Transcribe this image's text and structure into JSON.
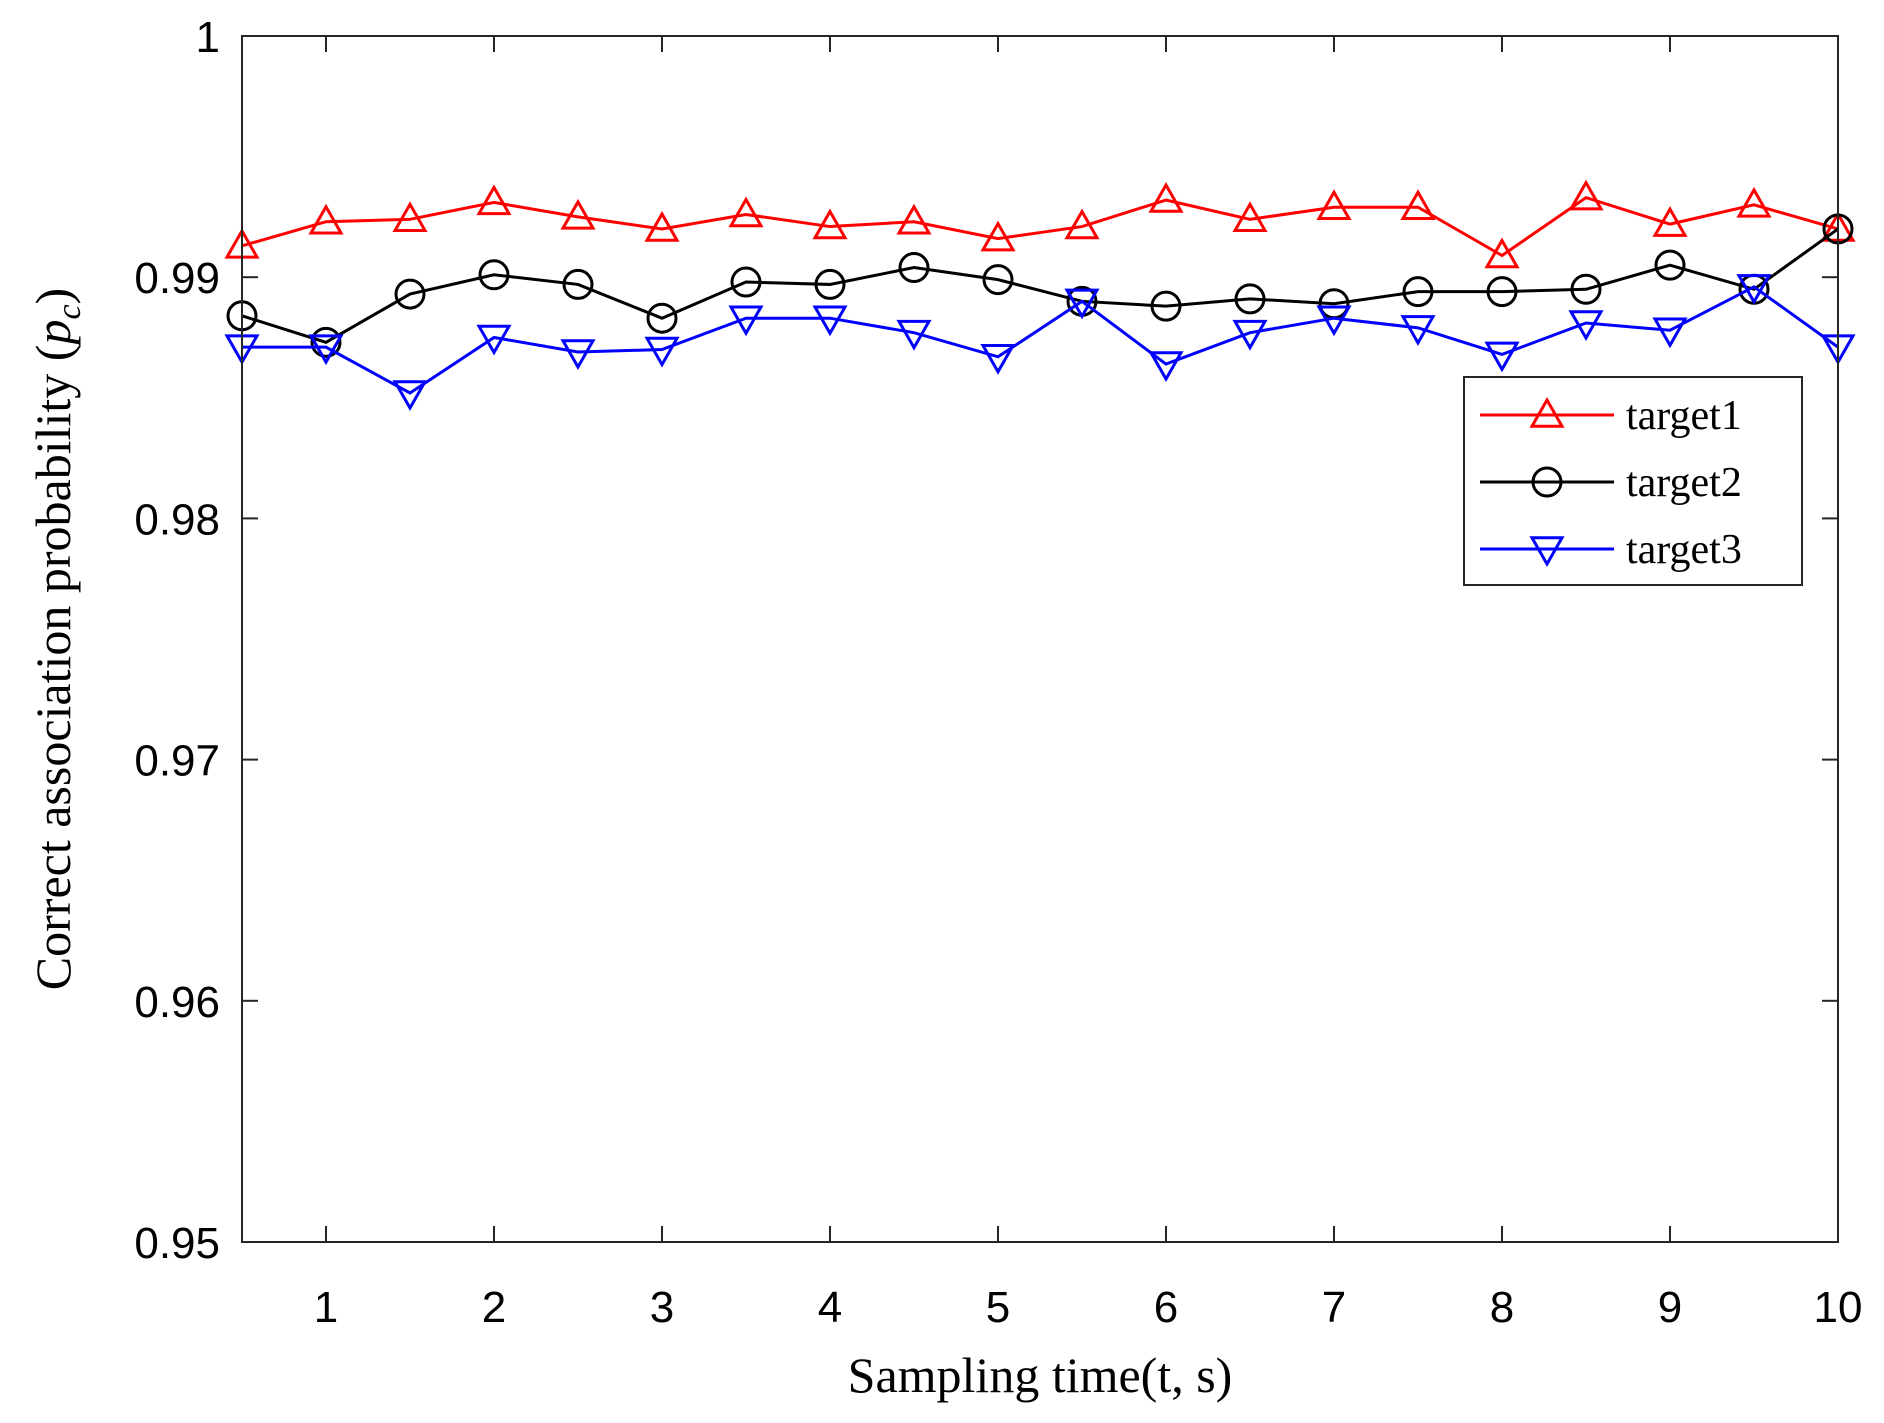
{
  "chart_data": {
    "type": "line",
    "title": "",
    "xlabel": "Sampling time(t, s)",
    "ylabel_main": "Correct association probability (",
    "ylabel_symbol": "p",
    "ylabel_subscript": "c",
    "ylabel_close": ")",
    "xlim": [
      0.5,
      10
    ],
    "ylim": [
      0.95,
      1.0
    ],
    "xticks": [
      1,
      2,
      3,
      4,
      5,
      6,
      7,
      8,
      9,
      10
    ],
    "xtick_labels": [
      "1",
      "2",
      "3",
      "4",
      "5",
      "6",
      "7",
      "8",
      "9",
      "10"
    ],
    "yticks": [
      0.95,
      0.96,
      0.97,
      0.98,
      0.99,
      1.0
    ],
    "ytick_labels": [
      "0.95",
      "0.96",
      "0.97",
      "0.98",
      "0.99",
      "1"
    ],
    "grid": false,
    "legend_position": "top-right",
    "x": [
      0.5,
      1,
      1.5,
      2,
      2.5,
      3,
      3.5,
      4,
      4.5,
      5,
      5.5,
      6,
      6.5,
      7,
      7.5,
      8,
      8.5,
      9,
      9.5,
      10
    ],
    "series": [
      {
        "name": "target1",
        "color": "#ff0000",
        "marker": "triangle-up",
        "values": [
          0.9913,
          0.9923,
          0.9924,
          0.9931,
          0.9925,
          0.992,
          0.9926,
          0.9921,
          0.9923,
          0.9916,
          0.9921,
          0.9932,
          0.9924,
          0.9929,
          0.9929,
          0.9909,
          0.9933,
          0.9922,
          0.993,
          0.992
        ]
      },
      {
        "name": "target2",
        "color": "#000000",
        "marker": "circle",
        "values": [
          0.9884,
          0.9873,
          0.9893,
          0.9901,
          0.9897,
          0.9883,
          0.9898,
          0.9897,
          0.9904,
          0.9899,
          0.989,
          0.9888,
          0.9891,
          0.9889,
          0.9894,
          0.9894,
          0.9895,
          0.9905,
          0.9895,
          0.992
        ]
      },
      {
        "name": "target3",
        "color": "#0000ff",
        "marker": "triangle-down",
        "values": [
          0.9871,
          0.9871,
          0.9852,
          0.9875,
          0.9869,
          0.987,
          0.9883,
          0.9883,
          0.9877,
          0.9867,
          0.989,
          0.9864,
          0.9877,
          0.9883,
          0.9879,
          0.9868,
          0.9881,
          0.9878,
          0.9896,
          0.9871
        ]
      }
    ]
  }
}
